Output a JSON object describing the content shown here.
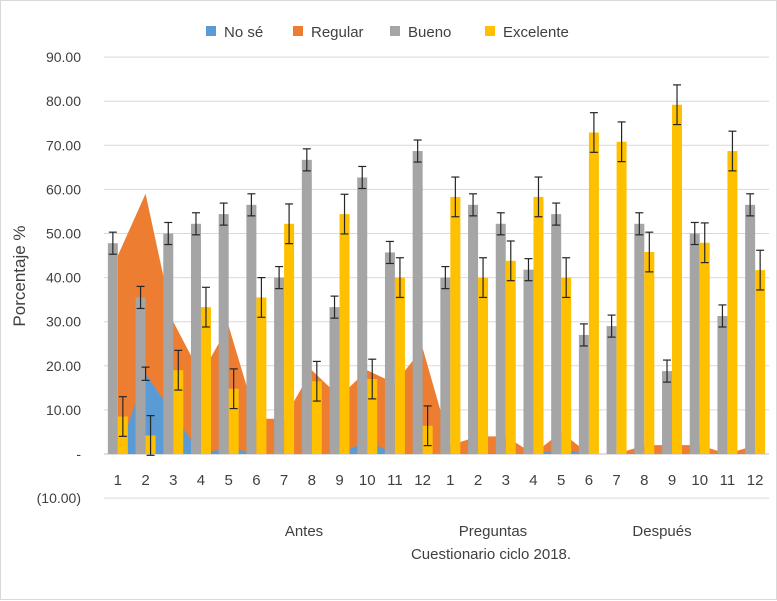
{
  "chart_data": {
    "type": "bar",
    "title": "",
    "xlabel": "Cuestionario ciclo 2018.",
    "ylabel": "Porcentaje %",
    "ylim": [
      -10,
      90
    ],
    "yticks": [
      {
        "v": 90,
        "label": "90.00"
      },
      {
        "v": 80,
        "label": "80.00"
      },
      {
        "v": 70,
        "label": "70.00"
      },
      {
        "v": 60,
        "label": "60.00"
      },
      {
        "v": 50,
        "label": "50.00"
      },
      {
        "v": 40,
        "label": "40.00"
      },
      {
        "v": 30,
        "label": "30.00"
      },
      {
        "v": 20,
        "label": "20.00"
      },
      {
        "v": 10,
        "label": "10.00"
      },
      {
        "v": 0,
        "label": "-"
      },
      {
        "v": -10,
        "label": "(10.00)"
      }
    ],
    "categories": [
      "1",
      "2",
      "3",
      "4",
      "5",
      "6",
      "7",
      "8",
      "9",
      "10",
      "11",
      "12",
      "1",
      "2",
      "3",
      "4",
      "5",
      "6",
      "7",
      "8",
      "9",
      "10",
      "11",
      "12"
    ],
    "group_labels": [
      "Antes",
      "Preguntas",
      "Después"
    ],
    "series": [
      {
        "name": "No sé",
        "render": "area",
        "color": "#5b9bd5",
        "values": [
          0.0,
          18.2,
          9.1,
          0.0,
          1.5,
          0.0,
          0.0,
          0.0,
          0.0,
          3.0,
          0.0,
          0.0,
          0.0,
          0.0,
          0.0,
          0.0,
          1.0,
          0.0,
          0.0,
          0.0,
          0.0,
          0.0,
          0.0,
          0.0
        ],
        "errors": [
          0,
          1.5,
          0,
          0,
          0,
          0,
          0,
          0,
          0,
          0,
          0,
          0,
          0,
          0,
          0,
          0,
          0,
          0,
          0,
          0,
          0,
          0,
          0,
          0
        ]
      },
      {
        "name": "Regular",
        "render": "area",
        "color": "#ed7d31",
        "values": [
          45.0,
          59.0,
          30.0,
          18.0,
          29.0,
          8.0,
          8.0,
          19.0,
          13.0,
          19.0,
          16.0,
          24.0,
          2.0,
          4.0,
          4.0,
          0.0,
          5.0,
          0.0,
          0.0,
          2.0,
          2.0,
          2.0,
          0.0,
          2.0
        ],
        "errors": [
          0,
          0,
          0,
          0,
          0,
          0,
          0,
          0,
          0,
          0,
          0,
          0,
          0,
          0,
          0,
          0,
          0,
          0,
          0,
          0,
          0,
          0,
          0,
          0
        ]
      },
      {
        "name": "Bueno",
        "render": "bar",
        "color": "#a5a5a5",
        "values": [
          47.8,
          35.5,
          50.0,
          52.2,
          54.4,
          56.5,
          40.0,
          66.7,
          33.3,
          62.7,
          45.7,
          68.7,
          40.0,
          56.5,
          52.2,
          41.8,
          54.4,
          27.0,
          29.0,
          52.2,
          18.8,
          50.0,
          31.3,
          56.5
        ],
        "errors": [
          2.5,
          2.5,
          2.5,
          2.5,
          2.5,
          2.5,
          2.5,
          2.5,
          2.5,
          2.5,
          2.5,
          2.5,
          2.5,
          2.5,
          2.5,
          2.5,
          2.5,
          2.5,
          2.5,
          2.5,
          2.5,
          2.5,
          2.5,
          2.5
        ]
      },
      {
        "name": "Excelente",
        "render": "bar",
        "color": "#ffc000",
        "values": [
          8.5,
          4.2,
          19.0,
          33.3,
          14.8,
          35.5,
          52.2,
          16.5,
          54.4,
          17.0,
          40.0,
          6.4,
          58.3,
          40.0,
          43.8,
          58.3,
          40.0,
          72.9,
          70.8,
          45.8,
          79.2,
          47.9,
          68.7,
          41.7
        ],
        "errors": [
          4.5,
          4.5,
          4.5,
          4.5,
          4.5,
          4.5,
          4.5,
          4.5,
          4.5,
          4.5,
          4.5,
          4.5,
          4.5,
          4.5,
          4.5,
          4.5,
          4.5,
          4.5,
          4.5,
          4.5,
          4.5,
          4.5,
          4.5,
          4.5
        ]
      }
    ],
    "legend_position": "top",
    "grid": true
  }
}
